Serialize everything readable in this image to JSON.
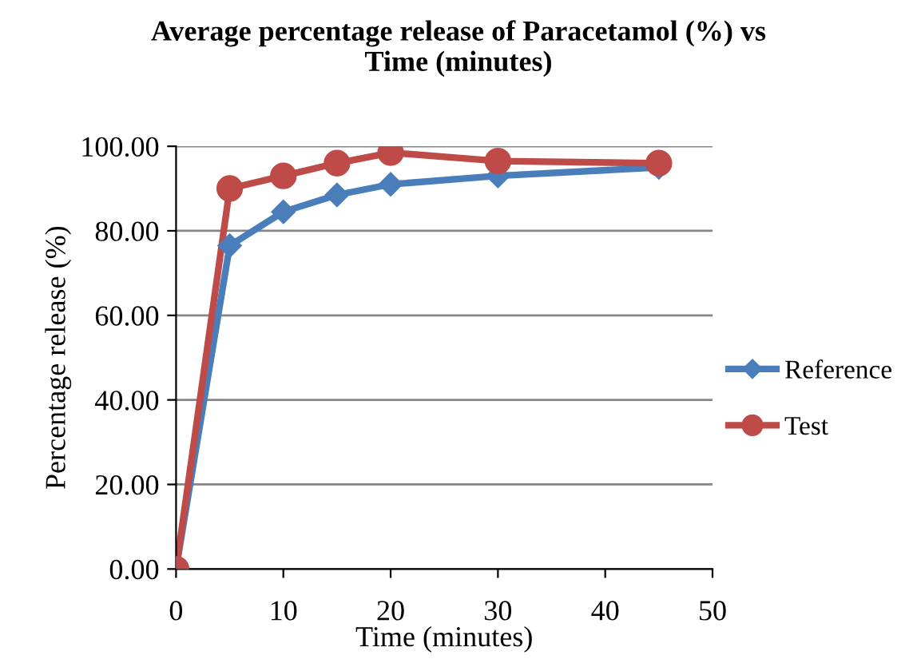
{
  "chart_data": {
    "type": "line",
    "title": "Average percentage release of Paracetamol (%) vs\nTime (minutes)",
    "xlabel": "Time (minutes)",
    "ylabel": "Percentage release (%)",
    "xlim": [
      0,
      50
    ],
    "xticks": [
      0,
      10,
      20,
      30,
      40,
      50
    ],
    "ylim": [
      0,
      100
    ],
    "yticks": [
      {
        "value": 0,
        "label": "0.00"
      },
      {
        "value": 20,
        "label": "20.00"
      },
      {
        "value": 40,
        "label": "40.00"
      },
      {
        "value": 60,
        "label": "60.00"
      },
      {
        "value": 80,
        "label": "80.00"
      },
      {
        "value": 100,
        "label": "100.00"
      }
    ],
    "grid": "y",
    "legend": "right",
    "line_style": "solid",
    "series": [
      {
        "name": "Reference",
        "color": "#4a7ebb",
        "marker": "diamond",
        "x": [
          0,
          5,
          10,
          15,
          20,
          30,
          45
        ],
        "values": [
          0,
          76.5,
          84.5,
          88.5,
          91,
          93,
          95
        ]
      },
      {
        "name": "Test",
        "color": "#be4b48",
        "marker": "circle",
        "x": [
          0,
          5,
          10,
          15,
          20,
          30,
          45
        ],
        "values": [
          0,
          90,
          93,
          96,
          98.5,
          96.5,
          96
        ]
      }
    ]
  }
}
